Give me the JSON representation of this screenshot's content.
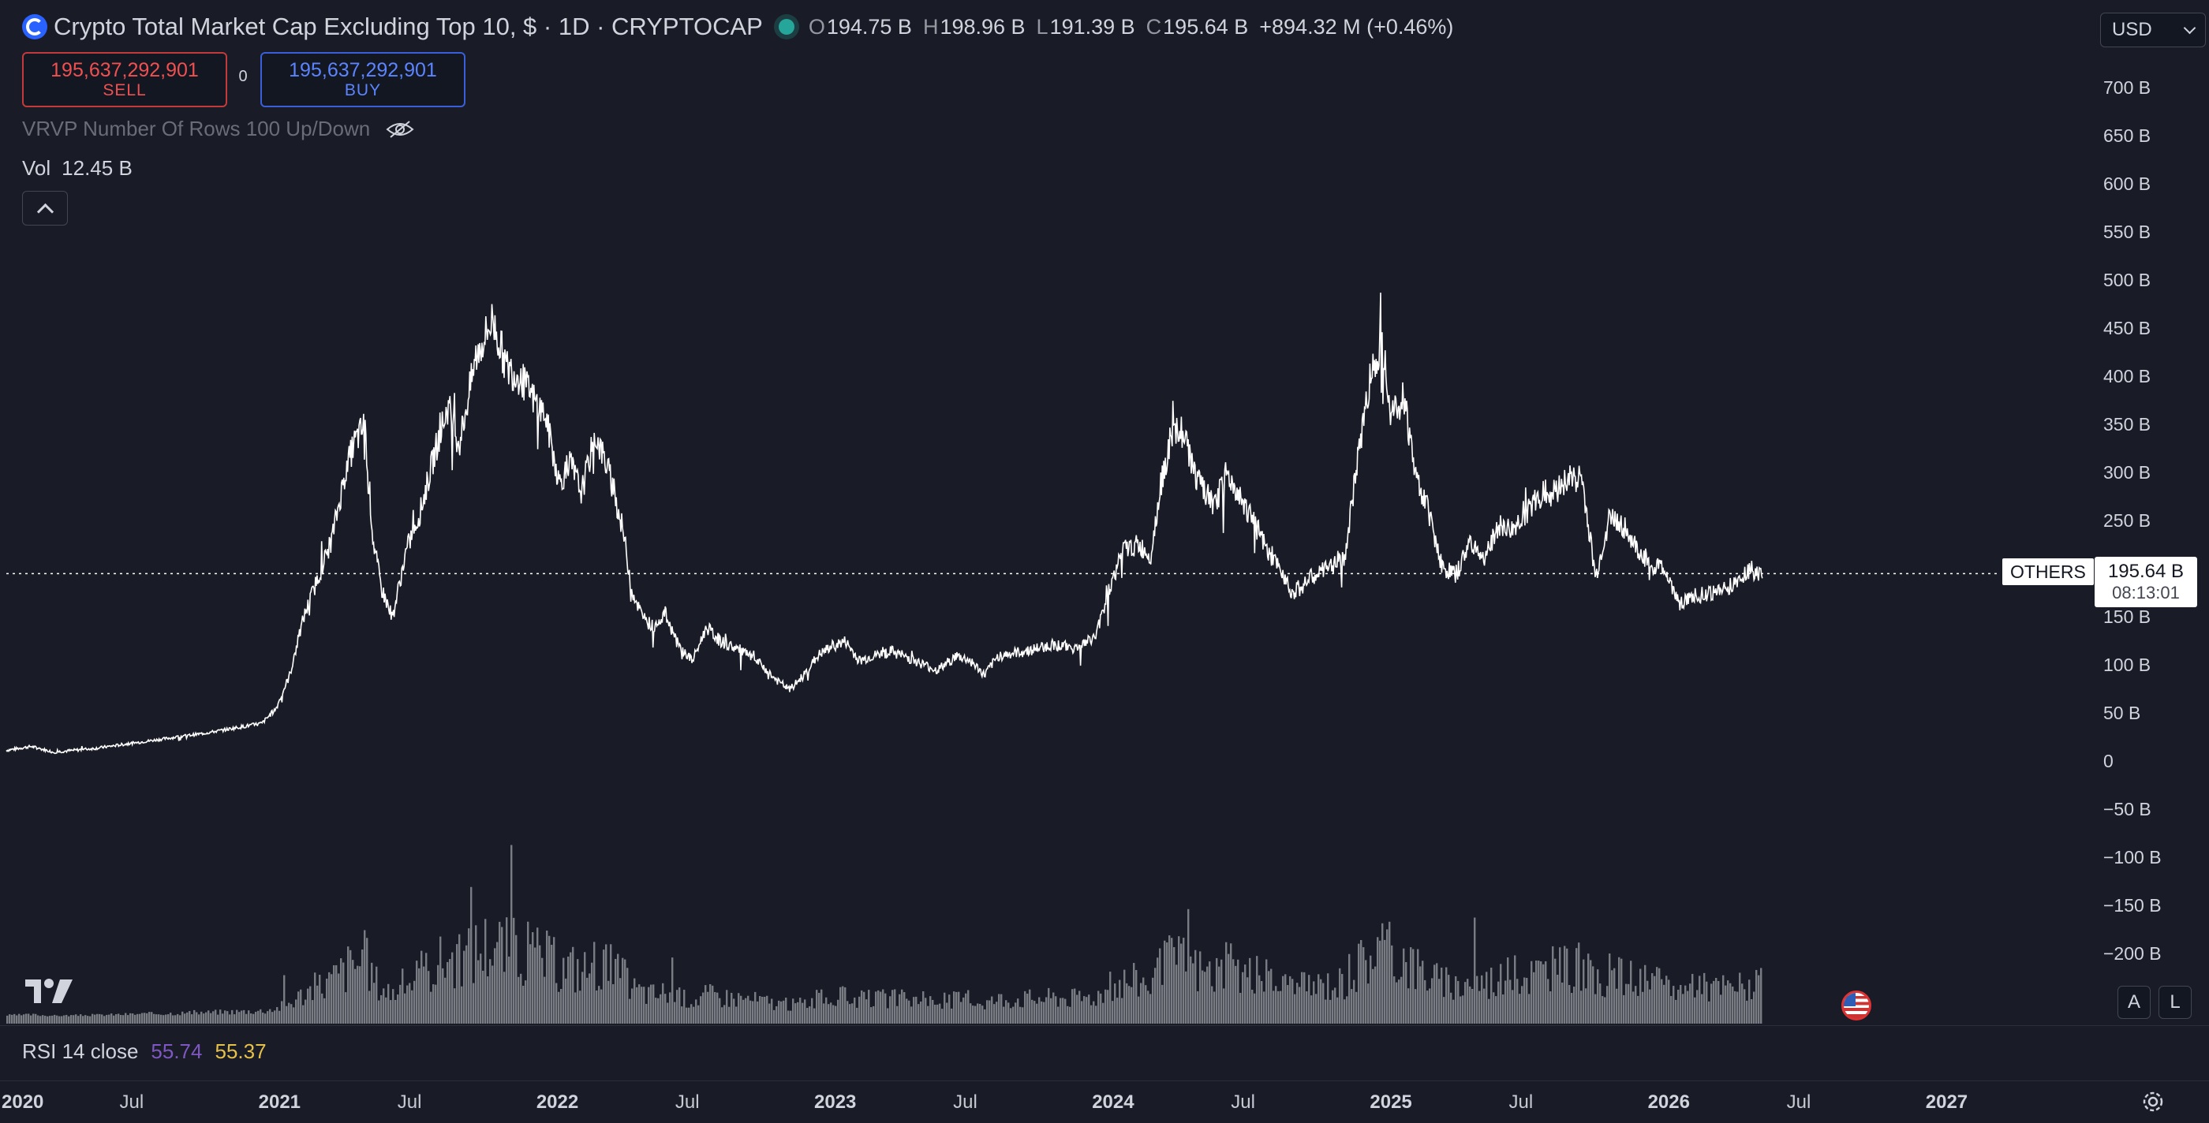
{
  "header": {
    "title": "Crypto Total Market Cap Excluding Top 10, $ · 1D · CRYPTOCAP",
    "ohlc": [
      {
        "k": "O",
        "v": "194.75 B"
      },
      {
        "k": "H",
        "v": "198.96 B"
      },
      {
        "k": "L",
        "v": "191.39 B"
      },
      {
        "k": "C",
        "v": "195.64 B"
      }
    ],
    "change": "+894.32 M (+0.46%)",
    "currency": "USD"
  },
  "trade": {
    "sell_price": "195,637,292,901",
    "sell_label": "SELL",
    "spread": "0",
    "buy_price": "195,637,292,901",
    "buy_label": "BUY"
  },
  "indicators": {
    "vrvp": "VRVP Number Of Rows 100 Up/Down",
    "vol_label": "Vol",
    "vol_value": "12.45 B",
    "rsi_label": "RSI 14 close",
    "rsi_value_1": "55.74",
    "rsi_value_2": "55.37"
  },
  "price_tag": {
    "symbol": "OTHERS",
    "price": "195.64 B",
    "countdown": "08:13:01"
  },
  "buttons": {
    "auto": "A",
    "log": "L"
  },
  "colors": {
    "background": "#191b26",
    "price_line": "#ffffff",
    "volume": "#7a7c84",
    "sell": "#f05050",
    "buy": "#5b84ff",
    "rsi_1": "#7e57c2",
    "rsi_2": "#e6c14a",
    "live": "#26a69a"
  },
  "chart_data": {
    "type": "line",
    "title": "Crypto Total Market Cap Excluding Top 10, $ · 1D · CRYPTOCAP",
    "y_axis_ticks": [
      "700 B",
      "650 B",
      "600 B",
      "550 B",
      "500 B",
      "450 B",
      "400 B",
      "350 B",
      "300 B",
      "250 B",
      "150 B",
      "100 B",
      "50 B",
      "0",
      "−50 B",
      "−100 B",
      "−150 B",
      "−200 B"
    ],
    "y_tick_values": [
      700,
      650,
      600,
      550,
      500,
      450,
      400,
      350,
      300,
      250,
      150,
      100,
      50,
      0,
      -50,
      -100,
      -150,
      -200
    ],
    "x_axis_ticks": [
      {
        "label": "2020",
        "t": 2020.0
      },
      {
        "label": "Jul",
        "t": 2020.5
      },
      {
        "label": "2021",
        "t": 2021.0
      },
      {
        "label": "Jul",
        "t": 2021.5
      },
      {
        "label": "2022",
        "t": 2022.0
      },
      {
        "label": "Jul",
        "t": 2022.5
      },
      {
        "label": "2023",
        "t": 2023.0
      },
      {
        "label": "Jul",
        "t": 2023.5
      },
      {
        "label": "2024",
        "t": 2024.0
      },
      {
        "label": "Jul",
        "t": 2024.5
      },
      {
        "label": "2025",
        "t": 2025.0
      },
      {
        "label": "Jul",
        "t": 2025.5
      },
      {
        "label": "2026",
        "t": 2026.0
      },
      {
        "label": "Jul",
        "t": 2026.5
      },
      {
        "label": "2027",
        "t": 2027.0
      }
    ],
    "ylim": [
      -225,
      720
    ],
    "xlim": [
      2020.03,
      2027.56
    ],
    "current_price": 195.64,
    "series": [
      {
        "values_unit": "B USD",
        "x": [
          2020.03,
          2020.12,
          2020.2,
          2020.35,
          2020.55,
          2020.75,
          2020.95,
          2021.0,
          2021.05,
          2021.1,
          2021.15,
          2021.2,
          2021.25,
          2021.28,
          2021.32,
          2021.35,
          2021.38,
          2021.42,
          2021.47,
          2021.52,
          2021.58,
          2021.62,
          2021.66,
          2021.72,
          2021.78,
          2021.83,
          2021.88,
          2021.92,
          2021.97,
          2022.02,
          2022.06,
          2022.1,
          2022.15,
          2022.2,
          2022.25,
          2022.28,
          2022.32,
          2022.36,
          2022.4,
          2022.45,
          2022.5,
          2022.55,
          2022.6,
          2022.68,
          2022.75,
          2022.8,
          2022.85,
          2022.9,
          2022.95,
          2023.0,
          2023.05,
          2023.1,
          2023.15,
          2023.22,
          2023.3,
          2023.38,
          2023.45,
          2023.5,
          2023.55,
          2023.6,
          2023.7,
          2023.8,
          2023.88,
          2023.95,
          2024.0,
          2024.05,
          2024.1,
          2024.15,
          2024.18,
          2024.22,
          2024.26,
          2024.32,
          2024.38,
          2024.42,
          2024.48,
          2024.52,
          2024.58,
          2024.62,
          2024.66,
          2024.72,
          2024.78,
          2024.85,
          2024.9,
          2024.94,
          2024.98,
          2025.02,
          2025.06,
          2025.1,
          2025.15,
          2025.2,
          2025.25,
          2025.3,
          2025.35,
          2025.4,
          2025.45,
          2025.5,
          2025.55,
          2025.6,
          2025.65,
          2025.7,
          2025.75,
          2025.8,
          2025.85,
          2025.9,
          2025.95,
          2026.0,
          2026.05,
          2026.1,
          2026.15,
          2026.2,
          2026.25,
          2026.3,
          2026.35
        ],
        "values": [
          12,
          16,
          10,
          14,
          22,
          30,
          40,
          55,
          90,
          150,
          190,
          230,
          300,
          330,
          350,
          230,
          180,
          150,
          220,
          260,
          330,
          370,
          330,
          420,
          460,
          410,
          400,
          380,
          360,
          290,
          310,
          280,
          340,
          300,
          240,
          180,
          150,
          140,
          155,
          120,
          105,
          140,
          125,
          115,
          100,
          85,
          75,
          90,
          110,
          120,
          125,
          105,
          110,
          115,
          105,
          95,
          110,
          105,
          90,
          110,
          115,
          122,
          118,
          130,
          180,
          220,
          225,
          215,
          280,
          335,
          345,
          290,
          265,
          300,
          270,
          250,
          210,
          200,
          175,
          190,
          200,
          215,
          330,
          400,
          440,
          360,
          380,
          300,
          260,
          200,
          195,
          230,
          210,
          245,
          240,
          260,
          275,
          280,
          295,
          295,
          190,
          255,
          245,
          220,
          205,
          200,
          165,
          170,
          175,
          178,
          185,
          200,
          196
        ]
      }
    ]
  }
}
